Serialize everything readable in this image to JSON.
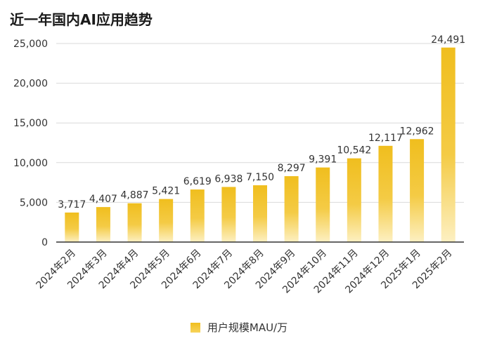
{
  "chart_data": {
    "type": "bar",
    "title": "近一年国内AI应用趋势",
    "categories": [
      "2024年2月",
      "2024年3月",
      "2024年4月",
      "2024年5月",
      "2024年6月",
      "2024年7月",
      "2024年8月",
      "2024年9月",
      "2024年10月",
      "2024年11月",
      "2024年12月",
      "2025年1月",
      "2025年2月"
    ],
    "series": [
      {
        "name": "用户规模MAU/万",
        "values": [
          3717,
          4407,
          4887,
          5421,
          6619,
          6938,
          7150,
          8297,
          9391,
          10542,
          12117,
          12962,
          24491
        ],
        "data_labels": [
          "3,717",
          "4,407",
          "4,887",
          "5,421",
          "6,619",
          "6,938",
          "7,150",
          "8,297",
          "9,391",
          "10,542",
          "12,117",
          "12,962",
          "24,491"
        ]
      }
    ],
    "ylim": [
      0,
      25000
    ],
    "yticks": [
      0,
      5000,
      10000,
      15000,
      20000,
      25000
    ],
    "ytick_labels": [
      "0",
      "5,000",
      "10,000",
      "15,000",
      "20,000",
      "25,000"
    ],
    "xlabel": "",
    "ylabel": "",
    "grid": true,
    "legend_position": "bottom",
    "bar_color_top": "#F0BE1E",
    "bar_color_bottom": "#FDF0C2",
    "grid_color": "#d9d9d9",
    "axis_color": "#333333"
  }
}
